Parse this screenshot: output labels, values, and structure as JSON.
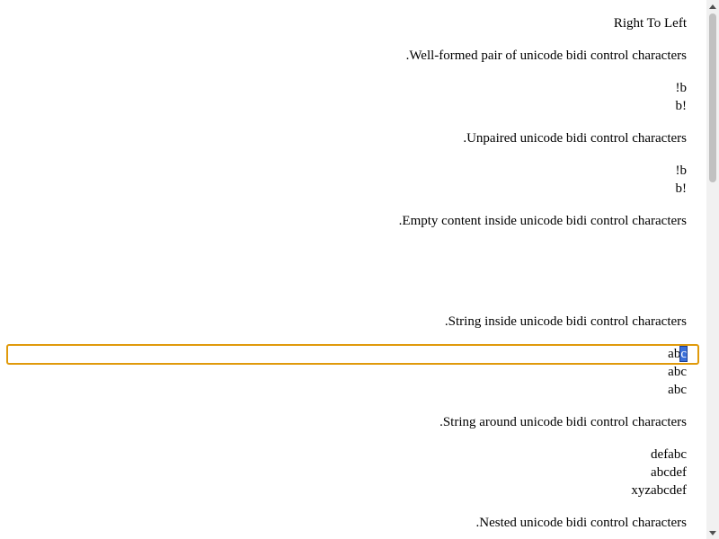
{
  "page": {
    "title": "Right To Left",
    "sections": [
      {
        "heading": ".Well-formed pair of unicode bidi control characters",
        "lines": [
          "!b",
          "b!"
        ]
      },
      {
        "heading": ".Unpaired unicode bidi control characters",
        "lines": [
          "!b",
          "b!"
        ]
      },
      {
        "heading": ".Empty content inside unicode bidi control characters",
        "lines": []
      },
      {
        "heading": ".String inside unicode bidi control characters",
        "focused_line_before_caret": "ab",
        "focused_line_selected": "c",
        "lines": [
          "abc",
          "abc"
        ]
      },
      {
        "heading": ".String around unicode bidi control characters",
        "lines": [
          "defabc",
          "abcdef",
          "xyzabcdef"
        ]
      },
      {
        "heading": ".Nested unicode bidi control characters",
        "lines": []
      }
    ]
  },
  "colors": {
    "focus_outline": "#e09a0b",
    "selection": "#3a6fd8",
    "scroll_thumb": "#c1c1c1"
  }
}
